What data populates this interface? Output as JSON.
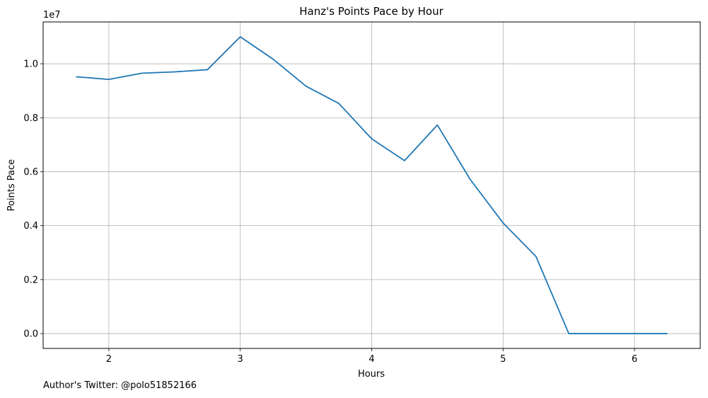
{
  "chart_data": {
    "type": "line",
    "title": "Hanz's Points Pace by Hour",
    "xlabel": "Hours",
    "ylabel": "Points Pace",
    "y_scale_label": "1e7",
    "xlim": [
      1.5,
      6.5
    ],
    "ylim": [
      -0.055,
      1.155
    ],
    "x_ticks": [
      2,
      3,
      4,
      5,
      6
    ],
    "x_tick_labels": [
      "2",
      "3",
      "4",
      "5",
      "6"
    ],
    "y_ticks": [
      0.0,
      0.2,
      0.4,
      0.6,
      0.8,
      1.0
    ],
    "y_tick_labels": [
      "0.0",
      "0.2",
      "0.4",
      "0.6",
      "0.8",
      "1.0"
    ],
    "grid": true,
    "series": [
      {
        "color": "#1f77b4",
        "x": [
          1.75,
          2.0,
          2.25,
          2.5,
          2.75,
          3.0,
          3.25,
          3.5,
          3.75,
          4.0,
          4.25,
          4.5,
          4.75,
          5.0,
          5.25,
          5.5,
          5.75,
          6.0,
          6.25
        ],
        "y": [
          0.952,
          0.942,
          0.965,
          0.97,
          0.978,
          1.1,
          1.017,
          0.917,
          0.853,
          0.722,
          0.641,
          0.773,
          0.571,
          0.41,
          0.286,
          0.0,
          0.0,
          0.0,
          0.0
        ]
      }
    ]
  },
  "footer": "Author's Twitter: @polo51852166"
}
